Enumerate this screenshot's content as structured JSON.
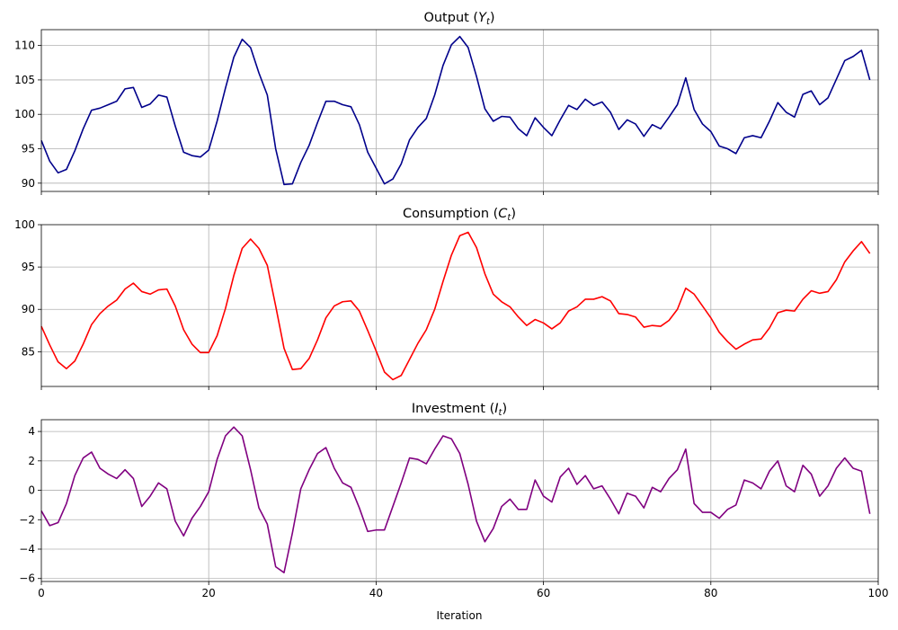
{
  "chart_data": {
    "type": "line",
    "xlabel": "Iteration",
    "xlim": [
      0,
      100
    ],
    "xticks": [
      0,
      20,
      40,
      60,
      80,
      100
    ],
    "grid": true,
    "shared_x": true,
    "panels": [
      {
        "title_main": "Output (",
        "title_var": "Y",
        "title_sub": "t",
        "title_end": ")",
        "color": "#00008b",
        "ylim": [
          88.8,
          112.3
        ],
        "yticks": [
          90,
          95,
          100,
          105,
          110
        ],
        "values": [
          96.2,
          93.2,
          91.5,
          92.0,
          94.7,
          97.9,
          100.6,
          100.9,
          101.4,
          101.9,
          103.7,
          103.9,
          101.0,
          101.5,
          102.8,
          102.5,
          98.3,
          94.5,
          94.0,
          93.8,
          94.8,
          99.0,
          103.8,
          108.3,
          110.9,
          109.7,
          106.0,
          102.8,
          95.0,
          89.8,
          89.9,
          93.0,
          95.5,
          98.8,
          101.9,
          101.9,
          101.4,
          101.1,
          98.5,
          94.5,
          92.2,
          89.9,
          90.6,
          92.8,
          96.3,
          98.1,
          99.4,
          102.8,
          107.1,
          110.1,
          111.3,
          109.7,
          105.5,
          100.8,
          99.0,
          99.7,
          99.6,
          97.9,
          96.9,
          99.5,
          98.1,
          96.9,
          99.2,
          101.3,
          100.7,
          102.2,
          101.3,
          101.8,
          100.3,
          97.8,
          99.2,
          98.6,
          96.8,
          98.5,
          97.9,
          99.6,
          101.4,
          105.3,
          100.7,
          98.6,
          97.5,
          95.4,
          95.0,
          94.3,
          96.6,
          96.9,
          96.6,
          99.0,
          101.7,
          100.3,
          99.6,
          102.9,
          103.4,
          101.4,
          102.4,
          105.1,
          107.8,
          108.4,
          109.3,
          105.0
        ]
      },
      {
        "title_main": "Consumption (",
        "title_var": "C",
        "title_sub": "t",
        "title_end": ")",
        "color": "#ff0000",
        "ylim": [
          80.9,
          100.0
        ],
        "yticks": [
          85,
          90,
          95,
          100
        ],
        "values": [
          88.0,
          85.8,
          83.8,
          83.0,
          83.9,
          85.9,
          88.2,
          89.5,
          90.4,
          91.1,
          92.4,
          93.1,
          92.1,
          91.8,
          92.3,
          92.4,
          90.4,
          87.6,
          85.9,
          84.9,
          84.9,
          86.9,
          90.1,
          94.0,
          97.2,
          98.3,
          97.2,
          95.2,
          90.4,
          85.4,
          82.9,
          83.0,
          84.2,
          86.4,
          89.0,
          90.4,
          90.9,
          91.0,
          89.8,
          87.5,
          85.1,
          82.6,
          81.7,
          82.2,
          84.1,
          86.0,
          87.6,
          90.0,
          93.3,
          96.4,
          98.7,
          99.1,
          97.3,
          94.2,
          91.8,
          90.9,
          90.3,
          89.1,
          88.1,
          88.8,
          88.4,
          87.7,
          88.4,
          89.8,
          90.3,
          91.2,
          91.2,
          91.5,
          91.0,
          89.5,
          89.4,
          89.1,
          87.9,
          88.1,
          88.0,
          88.7,
          90.0,
          92.5,
          91.8,
          90.4,
          89.0,
          87.3,
          86.2,
          85.3,
          85.9,
          86.4,
          86.5,
          87.8,
          89.6,
          89.9,
          89.8,
          91.2,
          92.2,
          91.9,
          92.1,
          93.5,
          95.6,
          96.9,
          98.0,
          96.6
        ]
      },
      {
        "title_main": "Investment (",
        "title_var": "I",
        "title_sub": "t",
        "title_end": ")",
        "color": "#800080",
        "ylim": [
          -6.2,
          4.8
        ],
        "yticks": [
          -6,
          -4,
          -2,
          0,
          2,
          4
        ],
        "values": [
          -1.4,
          -2.4,
          -2.2,
          -0.9,
          1.0,
          2.2,
          2.6,
          1.5,
          1.1,
          0.8,
          1.4,
          0.8,
          -1.1,
          -0.4,
          0.5,
          0.1,
          -2.1,
          -3.1,
          -1.9,
          -1.1,
          -0.1,
          2.1,
          3.7,
          4.3,
          3.7,
          1.4,
          -1.2,
          -2.3,
          -5.2,
          -5.6,
          -2.9,
          0.1,
          1.4,
          2.5,
          2.9,
          1.5,
          0.5,
          0.2,
          -1.2,
          -2.8,
          -2.7,
          -2.7,
          -1.1,
          0.5,
          2.2,
          2.1,
          1.8,
          2.8,
          3.7,
          3.5,
          2.5,
          0.4,
          -2.1,
          -3.5,
          -2.6,
          -1.1,
          -0.6,
          -1.3,
          -1.3,
          0.7,
          -0.4,
          -0.8,
          0.9,
          1.5,
          0.4,
          1.0,
          0.1,
          0.3,
          -0.6,
          -1.6,
          -0.2,
          -0.4,
          -1.2,
          0.2,
          -0.1,
          0.8,
          1.4,
          2.8,
          -0.9,
          -1.5,
          -1.5,
          -1.9,
          -1.3,
          -1.0,
          0.7,
          0.5,
          0.1,
          1.3,
          2.0,
          0.3,
          -0.1,
          1.7,
          1.1,
          -0.4,
          0.3,
          1.5,
          2.2,
          1.5,
          1.3,
          -1.6
        ]
      }
    ]
  }
}
